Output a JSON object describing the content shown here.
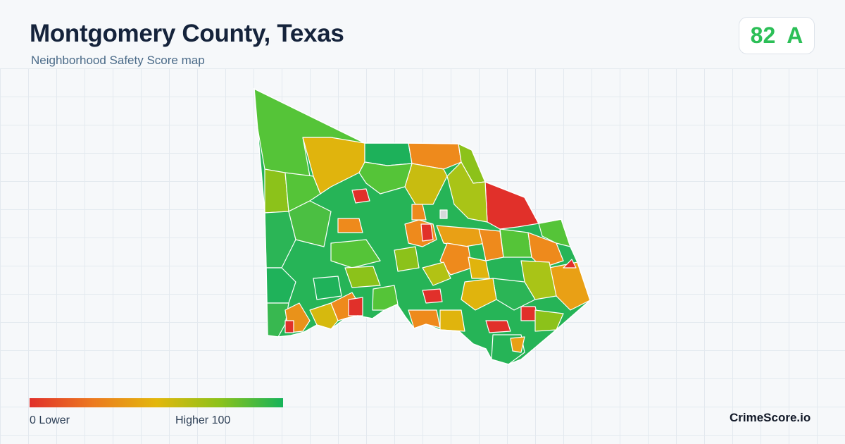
{
  "header": {
    "title": "Montgomery County, Texas",
    "subtitle": "Neighborhood Safety Score map"
  },
  "score": {
    "value": "82",
    "grade": "A"
  },
  "legend": {
    "min_label": "0  Lower",
    "max_label": "Higher  100"
  },
  "branding": {
    "site": "CrimeScore.io"
  },
  "colors": {
    "low": "#e1302a",
    "low_mid": "#ec7a20",
    "mid": "#e3b70c",
    "mid_high": "#8cc21a",
    "high": "#16b35a",
    "grade_accent": "#2cbf57",
    "no_data": "#d6d8db"
  }
}
